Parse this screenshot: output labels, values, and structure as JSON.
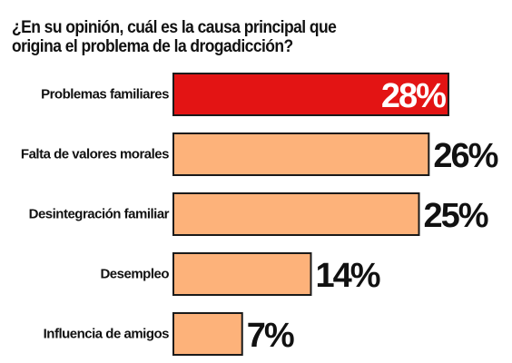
{
  "chart_data": {
    "type": "bar",
    "orientation": "horizontal",
    "title": "¿En su opinión, cuál es la causa principal que origina el problema de la drogadicción?",
    "categories": [
      "Problemas familiares",
      "Falta de valores morales",
      "Desintegración familiar",
      "Desempleo",
      "Influencia de amigos"
    ],
    "values": [
      28,
      26,
      25,
      14,
      7
    ],
    "value_labels": [
      "28%",
      "26%",
      "25%",
      "14%",
      "7%"
    ],
    "highlight_index": 0,
    "colors": {
      "highlight": "#e31414",
      "bar": "#fdb27a",
      "bar_border": "#1a1a1a",
      "highlight_label": "#ffffff",
      "label": "#111111"
    },
    "grid": false,
    "legend": "none"
  }
}
